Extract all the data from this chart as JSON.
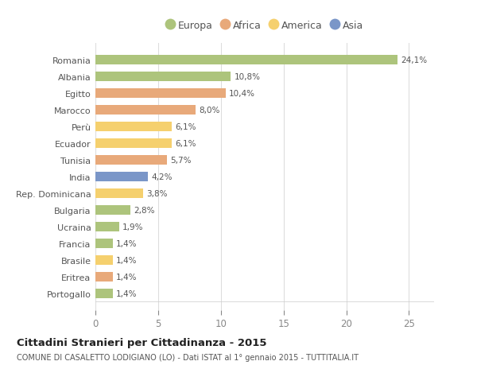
{
  "countries": [
    "Romania",
    "Albania",
    "Egitto",
    "Marocco",
    "Perù",
    "Ecuador",
    "Tunisia",
    "India",
    "Rep. Dominicana",
    "Bulgaria",
    "Ucraina",
    "Francia",
    "Brasile",
    "Eritrea",
    "Portogallo"
  ],
  "values": [
    24.1,
    10.8,
    10.4,
    8.0,
    6.1,
    6.1,
    5.7,
    4.2,
    3.8,
    2.8,
    1.9,
    1.4,
    1.4,
    1.4,
    1.4
  ],
  "labels": [
    "24,1%",
    "10,8%",
    "10,4%",
    "8,0%",
    "6,1%",
    "6,1%",
    "5,7%",
    "4,2%",
    "3,8%",
    "2,8%",
    "1,9%",
    "1,4%",
    "1,4%",
    "1,4%",
    "1,4%"
  ],
  "colors": [
    "#adc47c",
    "#adc47c",
    "#e8a97a",
    "#e8a97a",
    "#f5d06e",
    "#f5d06e",
    "#e8a97a",
    "#7a96c8",
    "#f5d06e",
    "#adc47c",
    "#adc47c",
    "#adc47c",
    "#f5d06e",
    "#e8a97a",
    "#adc47c"
  ],
  "legend_labels": [
    "Europa",
    "Africa",
    "America",
    "Asia"
  ],
  "legend_colors": [
    "#adc47c",
    "#e8a97a",
    "#f5d06e",
    "#7a96c8"
  ],
  "title": "Cittadini Stranieri per Cittadinanza - 2015",
  "subtitle": "COMUNE DI CASALETTO LODIGIANO (LO) - Dati ISTAT al 1° gennaio 2015 - TUTTITALIA.IT",
  "xlim": [
    0,
    27
  ],
  "xticks": [
    0,
    5,
    10,
    15,
    20,
    25
  ],
  "bg_color": "#ffffff",
  "bar_height": 0.55,
  "grid_color": "#dddddd"
}
